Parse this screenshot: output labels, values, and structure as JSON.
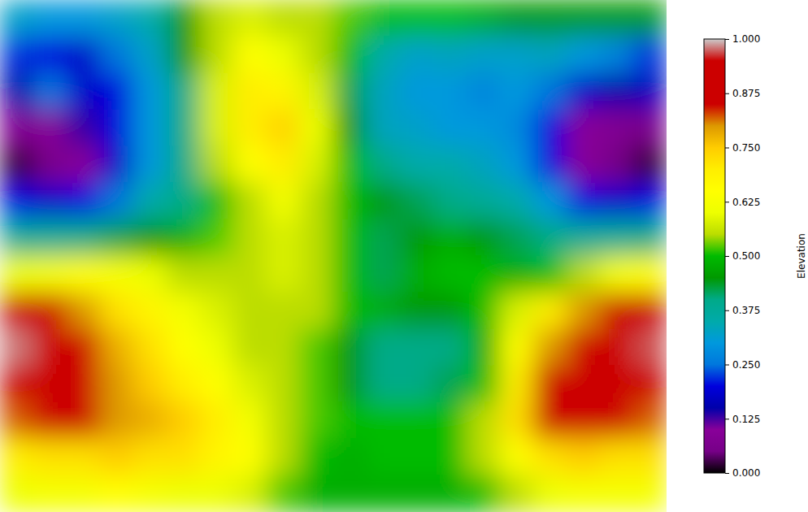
{
  "chart_data": {
    "type": "heatmap",
    "tick_labels": false,
    "cells": [
      [
        0.32,
        0.3,
        0.3,
        0.32,
        0.35,
        0.45,
        0.55,
        0.58,
        0.55,
        0.55,
        0.52,
        0.5,
        0.5,
        0.5,
        0.48,
        0.45,
        0.45,
        0.45,
        0.45,
        0.45
      ],
      [
        0.22,
        0.2,
        0.18,
        0.25,
        0.32,
        0.45,
        0.55,
        0.65,
        0.6,
        0.55,
        0.5,
        0.35,
        0.32,
        0.33,
        0.32,
        0.32,
        0.33,
        0.3,
        0.27,
        0.22
      ],
      [
        0.15,
        0.25,
        0.18,
        0.2,
        0.3,
        0.4,
        0.58,
        0.7,
        0.68,
        0.58,
        0.42,
        0.33,
        0.3,
        0.3,
        0.27,
        0.3,
        0.25,
        0.18,
        0.15,
        0.17
      ],
      [
        0.08,
        0.1,
        0.13,
        0.2,
        0.3,
        0.4,
        0.58,
        0.7,
        0.74,
        0.6,
        0.45,
        0.33,
        0.32,
        0.3,
        0.3,
        0.28,
        0.2,
        0.1,
        0.08,
        0.06
      ],
      [
        0.02,
        0.06,
        0.1,
        0.18,
        0.3,
        0.4,
        0.55,
        0.65,
        0.7,
        0.58,
        0.5,
        0.4,
        0.35,
        0.35,
        0.33,
        0.3,
        0.2,
        0.1,
        0.05,
        0.02
      ],
      [
        0.2,
        0.18,
        0.2,
        0.25,
        0.35,
        0.4,
        0.5,
        0.55,
        0.62,
        0.55,
        0.5,
        0.45,
        0.42,
        0.4,
        0.38,
        0.35,
        0.3,
        0.2,
        0.18,
        0.2
      ],
      [
        0.38,
        0.38,
        0.4,
        0.42,
        0.45,
        0.48,
        0.52,
        0.55,
        0.58,
        0.55,
        0.5,
        0.42,
        0.45,
        0.48,
        0.45,
        0.42,
        0.4,
        0.38,
        0.38,
        0.4
      ],
      [
        0.6,
        0.62,
        0.65,
        0.63,
        0.6,
        0.55,
        0.55,
        0.55,
        0.58,
        0.55,
        0.5,
        0.42,
        0.48,
        0.5,
        0.5,
        0.48,
        0.5,
        0.55,
        0.62,
        0.65
      ],
      [
        0.88,
        0.85,
        0.8,
        0.72,
        0.68,
        0.62,
        0.58,
        0.55,
        0.55,
        0.55,
        0.5,
        0.48,
        0.45,
        0.45,
        0.5,
        0.58,
        0.7,
        0.8,
        0.85,
        0.88
      ],
      [
        0.98,
        0.95,
        0.88,
        0.78,
        0.72,
        0.65,
        0.6,
        0.55,
        0.55,
        0.52,
        0.45,
        0.4,
        0.4,
        0.4,
        0.48,
        0.65,
        0.8,
        0.88,
        0.9,
        0.97
      ],
      [
        0.88,
        0.9,
        0.88,
        0.8,
        0.75,
        0.7,
        0.65,
        0.58,
        0.55,
        0.52,
        0.45,
        0.4,
        0.4,
        0.42,
        0.5,
        0.7,
        0.85,
        0.9,
        0.88,
        0.85
      ],
      [
        0.82,
        0.88,
        0.86,
        0.8,
        0.78,
        0.75,
        0.7,
        0.62,
        0.55,
        0.52,
        0.5,
        0.5,
        0.5,
        0.5,
        0.55,
        0.72,
        0.85,
        0.88,
        0.85,
        0.82
      ],
      [
        0.7,
        0.72,
        0.72,
        0.75,
        0.72,
        0.72,
        0.68,
        0.65,
        0.55,
        0.5,
        0.48,
        0.5,
        0.5,
        0.5,
        0.55,
        0.65,
        0.72,
        0.75,
        0.72,
        0.72
      ],
      [
        0.6,
        0.62,
        0.62,
        0.65,
        0.62,
        0.6,
        0.6,
        0.58,
        0.52,
        0.48,
        0.48,
        0.48,
        0.48,
        0.48,
        0.5,
        0.55,
        0.6,
        0.62,
        0.62,
        0.62
      ]
    ],
    "colorbar_label": "Elevation",
    "colorbar_range": [
      0,
      1
    ],
    "colorbar_ticks": [
      {
        "value": 0,
        "label": "0.000"
      },
      {
        "value": 0.125,
        "label": "0.125"
      },
      {
        "value": 0.25,
        "label": "0.250"
      },
      {
        "value": 0.375,
        "label": "0.375"
      },
      {
        "value": 0.5,
        "label": "0.500"
      },
      {
        "value": 0.625,
        "label": "0.625"
      },
      {
        "value": 0.75,
        "label": "0.750"
      },
      {
        "value": 0.875,
        "label": "0.875"
      },
      {
        "value": 1,
        "label": "1.000"
      }
    ]
  }
}
